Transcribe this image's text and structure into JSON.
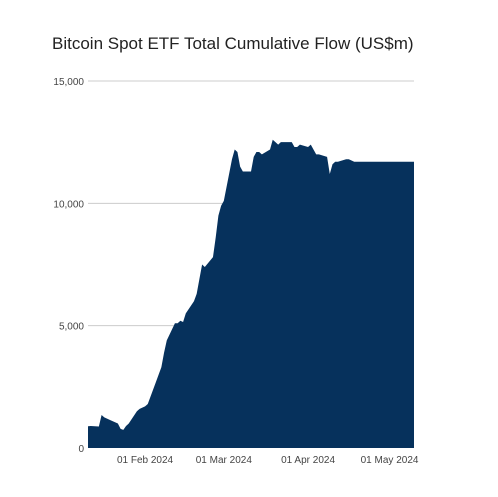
{
  "chart_data": {
    "type": "area",
    "title": "Bitcoin Spot ETF Total Cumulative Flow (US$m)",
    "xlabel": "",
    "ylabel": "",
    "ylim": [
      0,
      15000
    ],
    "grid": true,
    "legend": "none",
    "colors": {
      "area": "#06315c",
      "grid": "#cccccc",
      "text": "#444444"
    },
    "y_ticks": [
      {
        "value": 0,
        "label": "0"
      },
      {
        "value": 5000,
        "label": "5,000"
      },
      {
        "value": 10000,
        "label": "10,000"
      },
      {
        "value": 15000,
        "label": "15,000"
      }
    ],
    "x_ticks": [
      {
        "date": "2024-02-01",
        "label": "01 Feb 2024"
      },
      {
        "date": "2024-03-01",
        "label": "01 Mar 2024"
      },
      {
        "date": "2024-04-01",
        "label": "01 Apr 2024"
      },
      {
        "date": "2024-05-01",
        "label": "01 May 2024"
      }
    ],
    "x": [
      "2024-01-11",
      "2024-01-12",
      "2024-01-15",
      "2024-01-16",
      "2024-01-17",
      "2024-01-18",
      "2024-01-19",
      "2024-01-22",
      "2024-01-23",
      "2024-01-24",
      "2024-01-25",
      "2024-01-26",
      "2024-01-29",
      "2024-01-30",
      "2024-01-31",
      "2024-02-01",
      "2024-02-02",
      "2024-02-05",
      "2024-02-06",
      "2024-02-07",
      "2024-02-08",
      "2024-02-09",
      "2024-02-12",
      "2024-02-13",
      "2024-02-14",
      "2024-02-15",
      "2024-02-16",
      "2024-02-19",
      "2024-02-20",
      "2024-02-21",
      "2024-02-22",
      "2024-02-23",
      "2024-02-26",
      "2024-02-27",
      "2024-02-28",
      "2024-02-29",
      "2024-03-01",
      "2024-03-04",
      "2024-03-05",
      "2024-03-06",
      "2024-03-07",
      "2024-03-08",
      "2024-03-11",
      "2024-03-12",
      "2024-03-13",
      "2024-03-14",
      "2024-03-15",
      "2024-03-18",
      "2024-03-19",
      "2024-03-20",
      "2024-03-21",
      "2024-03-22",
      "2024-03-25",
      "2024-03-26",
      "2024-03-27",
      "2024-03-28",
      "2024-03-29",
      "2024-04-01",
      "2024-04-02",
      "2024-04-03",
      "2024-04-04",
      "2024-04-05",
      "2024-04-08",
      "2024-04-09",
      "2024-04-10",
      "2024-04-11",
      "2024-04-12",
      "2024-04-15",
      "2024-04-16",
      "2024-04-17",
      "2024-04-18",
      "2024-04-19",
      "2024-04-22",
      "2024-04-23",
      "2024-04-24",
      "2024-04-25",
      "2024-04-26",
      "2024-04-29",
      "2024-04-30",
      "2024-05-01",
      "2024-05-02",
      "2024-05-03",
      "2024-05-06",
      "2024-05-07",
      "2024-05-08",
      "2024-05-09",
      "2024-05-10"
    ],
    "values": [
      890,
      900,
      880,
      1350,
      1250,
      1200,
      1150,
      1000,
      780,
      740,
      900,
      1000,
      1500,
      1600,
      1650,
      1700,
      1800,
      2700,
      3000,
      3300,
      3900,
      4400,
      5100,
      5100,
      5200,
      5150,
      5500,
      6000,
      6300,
      6900,
      7500,
      7400,
      7800,
      8600,
      9500,
      9900,
      10100,
      11800,
      12200,
      12100,
      11500,
      11300,
      11300,
      11900,
      12100,
      12100,
      12000,
      12200,
      12600,
      12500,
      12400,
      12500,
      12500,
      12500,
      12300,
      12300,
      12400,
      12300,
      12400,
      12200,
      12000,
      12000,
      11900,
      11200,
      11600,
      11700,
      11700,
      11800,
      11800,
      11750,
      11700,
      11700,
      11700,
      11700,
      11700,
      11700,
      11700,
      11700,
      11700,
      11700,
      11700,
      11700,
      11700,
      11700,
      11700,
      11700,
      11700
    ]
  }
}
